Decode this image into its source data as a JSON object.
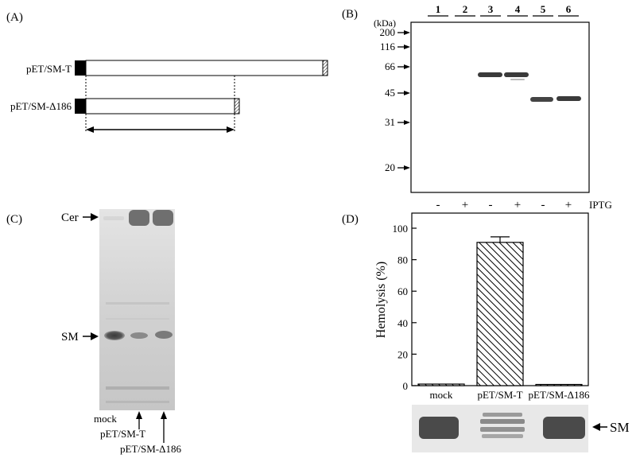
{
  "panels": {
    "a": {
      "label": "(A)",
      "construct_full": "pET/SM-T",
      "construct_trunc": "pET/SM-Δ186"
    },
    "b": {
      "label": "(B)",
      "unit": "(kDa)",
      "markers": [
        "200",
        "116",
        "66",
        "45",
        "31",
        "20"
      ],
      "lanes": [
        "1",
        "2",
        "3",
        "4",
        "5",
        "6"
      ],
      "iptg_signs": [
        "-",
        "+",
        "-",
        "+",
        "-",
        "+"
      ],
      "iptg_label": "IPTG"
    },
    "c": {
      "label": "(C)",
      "cer_label": "Cer",
      "sm_label": "SM",
      "lane_labels": [
        "mock",
        "pET/SM-T",
        "pET/SM-Δ186"
      ]
    },
    "d": {
      "label": "(D)",
      "sm_label": "SM"
    }
  },
  "chart_data": {
    "type": "bar",
    "categories": [
      "mock",
      "pET/SM-T",
      "pET/SM-Δ186"
    ],
    "values": [
      1,
      91,
      0.3
    ],
    "error": [
      0,
      3.5,
      0
    ],
    "ylabel": "Hemolysis (%)",
    "ylim": [
      0,
      100
    ],
    "yticks": [
      "0",
      "20",
      "40",
      "60",
      "80",
      "100"
    ],
    "bar_fill": "diagonal-hatch",
    "grid": false
  }
}
